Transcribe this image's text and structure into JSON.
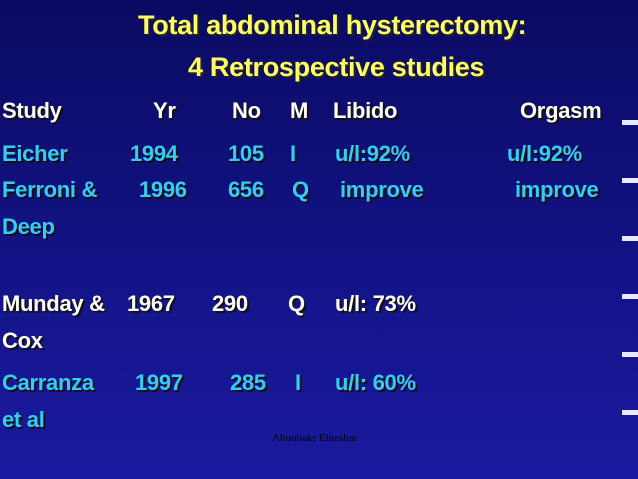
{
  "title": [
    "Total abdominal hysterectomy:",
    "4 Retrospective studies"
  ],
  "table": {
    "header": [
      "Study",
      "Yr",
      "No",
      "M",
      "Libido",
      "Orgasm"
    ],
    "rows": [
      [
        "Eicher",
        1994,
        105,
        "I",
        "u/l:92%",
        "u/l:92%"
      ],
      [
        "Ferroni &\nDeep",
        1996,
        656,
        "Q",
        "improve",
        "improve"
      ],
      [
        "Munday &\nCox",
        1967,
        290,
        "Q",
        "u/l: 73%"
      ],
      [
        "Carranza\net al",
        1997,
        285,
        "I",
        "u/l: 60%"
      ]
    ]
  },
  "footer": "Aboubakr Elnashar"
}
